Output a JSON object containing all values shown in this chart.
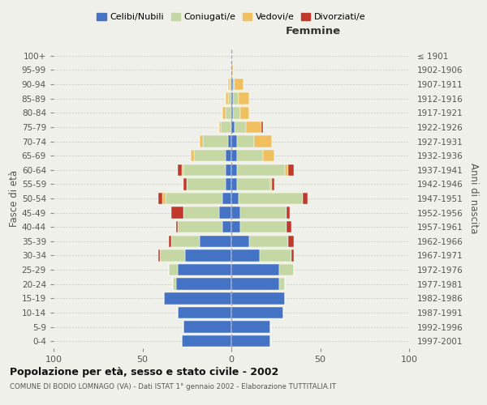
{
  "age_groups": [
    "0-4",
    "5-9",
    "10-14",
    "15-19",
    "20-24",
    "25-29",
    "30-34",
    "35-39",
    "40-44",
    "45-49",
    "50-54",
    "55-59",
    "60-64",
    "65-69",
    "70-74",
    "75-79",
    "80-84",
    "85-89",
    "90-94",
    "95-99",
    "100+"
  ],
  "birth_years": [
    "1997-2001",
    "1992-1996",
    "1987-1991",
    "1982-1986",
    "1977-1981",
    "1972-1976",
    "1967-1971",
    "1962-1966",
    "1957-1961",
    "1952-1956",
    "1947-1951",
    "1942-1946",
    "1937-1941",
    "1932-1936",
    "1927-1931",
    "1922-1926",
    "1917-1921",
    "1912-1916",
    "1907-1911",
    "1902-1906",
    "≤ 1901"
  ],
  "male": {
    "celibi": [
      28,
      27,
      30,
      38,
      31,
      30,
      26,
      18,
      5,
      7,
      5,
      3,
      3,
      3,
      2,
      0,
      0,
      0,
      0,
      0,
      0
    ],
    "coniugati": [
      0,
      0,
      0,
      0,
      2,
      5,
      14,
      16,
      25,
      20,
      32,
      22,
      24,
      18,
      14,
      6,
      3,
      2,
      1,
      0,
      0
    ],
    "vedovi": [
      0,
      0,
      0,
      0,
      0,
      0,
      0,
      0,
      0,
      0,
      2,
      0,
      1,
      2,
      2,
      1,
      2,
      1,
      1,
      0,
      0
    ],
    "divorziati": [
      0,
      0,
      0,
      0,
      0,
      0,
      1,
      1,
      1,
      7,
      2,
      2,
      2,
      0,
      0,
      0,
      0,
      0,
      0,
      0,
      0
    ]
  },
  "female": {
    "nubili": [
      22,
      22,
      29,
      30,
      27,
      27,
      16,
      10,
      5,
      5,
      4,
      3,
      3,
      3,
      3,
      2,
      1,
      1,
      1,
      0,
      0
    ],
    "coniugate": [
      0,
      0,
      0,
      0,
      3,
      8,
      18,
      22,
      26,
      26,
      36,
      19,
      27,
      15,
      10,
      6,
      4,
      3,
      1,
      0,
      0
    ],
    "vedove": [
      0,
      0,
      0,
      0,
      0,
      0,
      0,
      0,
      0,
      0,
      0,
      1,
      2,
      6,
      10,
      9,
      5,
      6,
      5,
      1,
      0
    ],
    "divorziate": [
      0,
      0,
      0,
      0,
      0,
      0,
      1,
      3,
      3,
      2,
      3,
      1,
      3,
      0,
      0,
      1,
      0,
      0,
      0,
      0,
      0
    ]
  },
  "colors": {
    "celibi": "#4472c4",
    "coniugati": "#c5d8a4",
    "vedovi": "#f0c060",
    "divorziati": "#c0392b"
  },
  "xlim": 100,
  "title": "Popolazione per età, sesso e stato civile - 2002",
  "subtitle": "COMUNE DI BODIO LOMNAGO (VA) - Dati ISTAT 1° gennaio 2002 - Elaborazione TUTTITALIA.IT",
  "ylabel_left": "Fasce di età",
  "ylabel_right": "Anni di nascita",
  "xlabel_right": "Femmine",
  "legend_labels": [
    "Celibi/Nubili",
    "Coniugati/e",
    "Vedovi/e",
    "Divorziati/e"
  ],
  "bg_color": "#f0f0ea"
}
